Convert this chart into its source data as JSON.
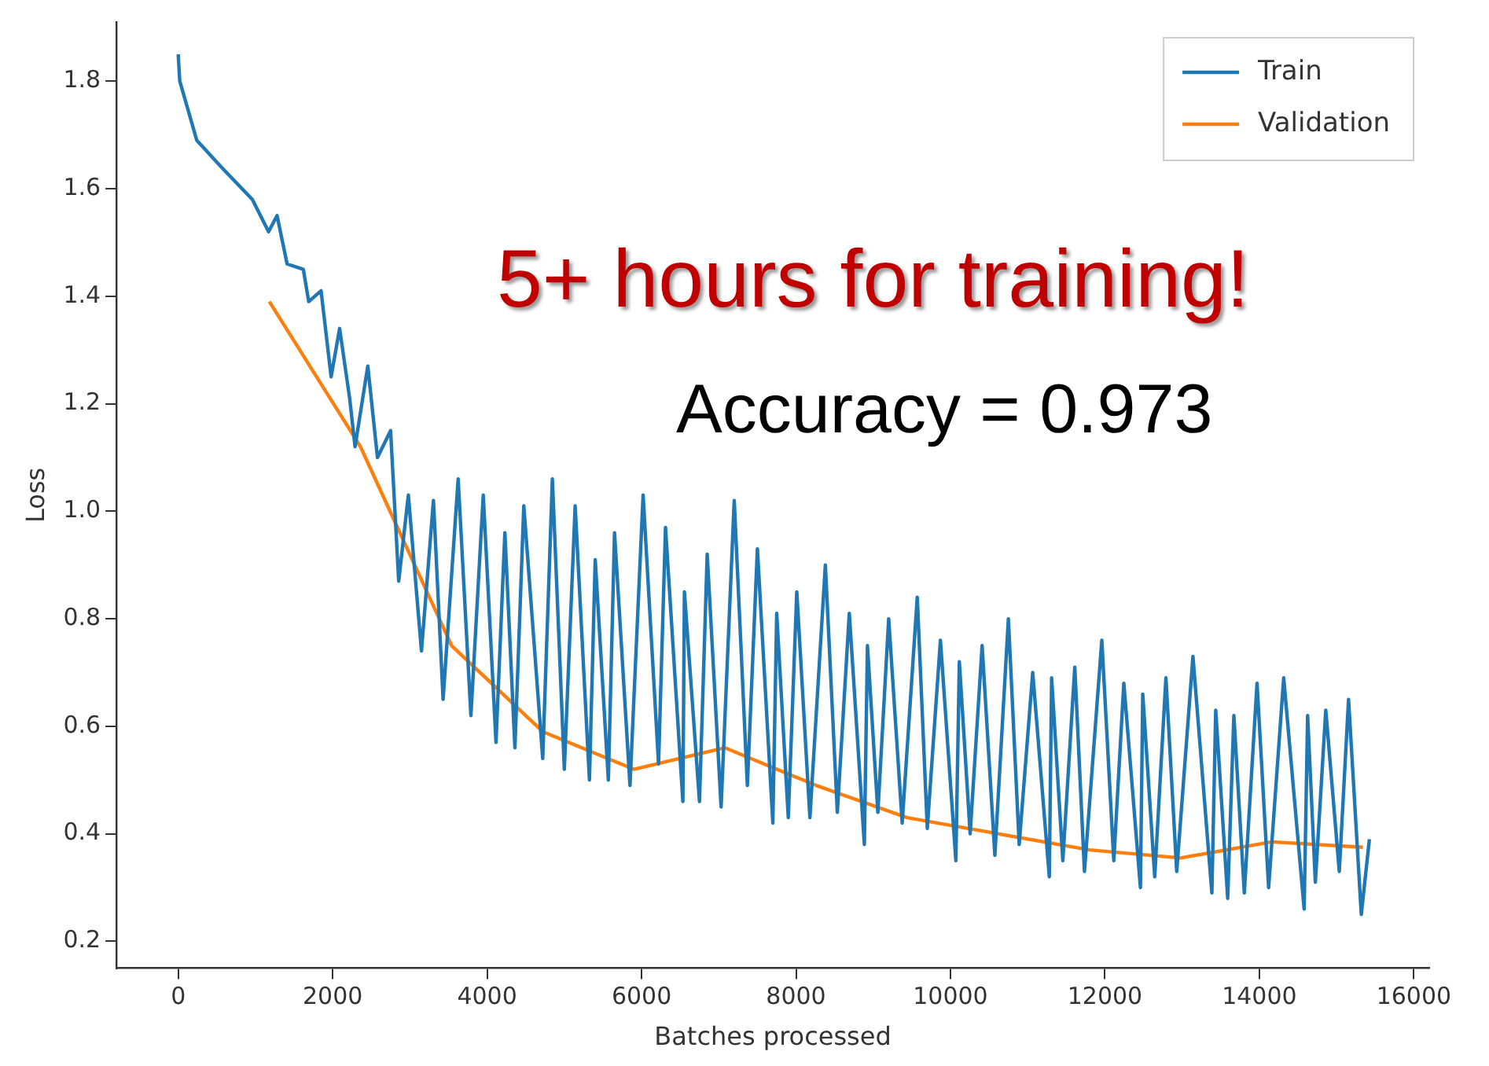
{
  "chart_data": {
    "type": "line",
    "xlabel": "Batches processed",
    "ylabel": "Loss",
    "xlim": [
      -800,
      16200
    ],
    "xticks": [
      0,
      2000,
      4000,
      6000,
      8000,
      10000,
      12000,
      14000,
      16000
    ],
    "ylim": [
      0.15,
      1.91
    ],
    "yticks": [
      0.2,
      0.4,
      0.6,
      0.8,
      {
        "value": 1,
        "label": "1.0"
      },
      1.2,
      1.4,
      1.6,
      1.8
    ],
    "grid": false,
    "legend": "top right",
    "marker": "none",
    "line_style": "solid",
    "annotations": [
      "5+ hours for training!",
      "Accuracy = 0.973"
    ],
    "series": [
      {
        "name": "Train",
        "color": "#1f77b4",
        "x": [
          0,
          20,
          240,
          560,
          960,
          1170,
          1280,
          1410,
          1620,
          1690,
          1850,
          1980,
          2090,
          2220,
          2290,
          2455,
          2580,
          2750,
          2855,
          2980,
          3150,
          3305,
          3430,
          3625,
          3790,
          3950,
          4115,
          4230,
          4360,
          4475,
          4720,
          4845,
          5000,
          5140,
          5325,
          5400,
          5570,
          5650,
          5850,
          6020,
          6220,
          6310,
          6535,
          6555,
          6750,
          6850,
          7030,
          7200,
          7370,
          7500,
          7700,
          7750,
          7900,
          8010,
          8180,
          8380,
          8535,
          8690,
          8885,
          8925,
          9060,
          9200,
          9375,
          9570,
          9700,
          9870,
          10070,
          10115,
          10255,
          10410,
          10575,
          10750,
          10890,
          11065,
          11280,
          11310,
          11455,
          11610,
          11735,
          11960,
          12115,
          12245,
          12460,
          12490,
          12645,
          12790,
          12930,
          13140,
          13385,
          13435,
          13590,
          13670,
          13805,
          13970,
          14120,
          14315,
          14580,
          14625,
          14725,
          14860,
          15035,
          15155,
          15320,
          15425
        ],
        "values": [
          1.85,
          1.8,
          1.69,
          1.64,
          1.58,
          1.52,
          1.55,
          1.46,
          1.45,
          1.39,
          1.41,
          1.25,
          1.34,
          1.21,
          1.12,
          1.27,
          1.1,
          1.15,
          0.87,
          1.03,
          0.74,
          1.02,
          0.65,
          1.06,
          0.62,
          1.03,
          0.57,
          0.96,
          0.56,
          1.01,
          0.54,
          1.06,
          0.52,
          1.01,
          0.5,
          0.91,
          0.5,
          0.96,
          0.49,
          1.03,
          0.53,
          0.97,
          0.46,
          0.85,
          0.46,
          0.92,
          0.45,
          1.02,
          0.49,
          0.93,
          0.42,
          0.81,
          0.43,
          0.85,
          0.43,
          0.9,
          0.44,
          0.81,
          0.38,
          0.75,
          0.44,
          0.8,
          0.42,
          0.84,
          0.41,
          0.76,
          0.35,
          0.72,
          0.4,
          0.75,
          0.36,
          0.8,
          0.38,
          0.7,
          0.32,
          0.69,
          0.35,
          0.71,
          0.33,
          0.76,
          0.35,
          0.68,
          0.3,
          0.66,
          0.32,
          0.69,
          0.33,
          0.73,
          0.29,
          0.63,
          0.28,
          0.62,
          0.29,
          0.68,
          0.3,
          0.69,
          0.26,
          0.62,
          0.31,
          0.63,
          0.33,
          0.65,
          0.25,
          0.39
        ]
      },
      {
        "name": "Validation",
        "color": "#ff7f0e",
        "x": [
          1180,
          2360,
          3540,
          4720,
          5900,
          7080,
          8260,
          9440,
          10620,
          11800,
          12980,
          14160,
          15340
        ],
        "values": [
          1.39,
          1.12,
          0.75,
          0.59,
          0.52,
          0.56,
          0.49,
          0.43,
          0.4,
          0.37,
          0.355,
          0.385,
          0.375
        ]
      }
    ]
  }
}
